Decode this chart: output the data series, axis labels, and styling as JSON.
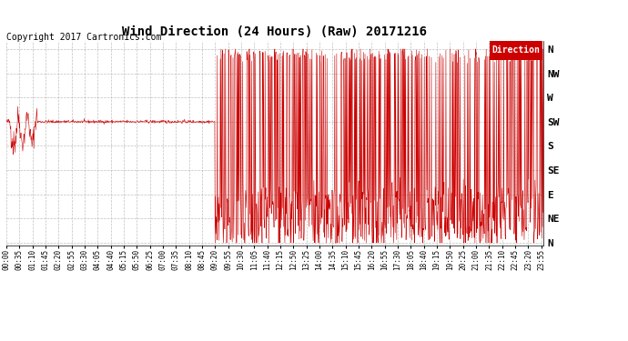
{
  "title": "Wind Direction (24 Hours) (Raw) 20171216",
  "copyright": "Copyright 2017 Cartronics.com",
  "legend_label": "Direction",
  "legend_bg": "#cc0000",
  "legend_text_color": "#ffffff",
  "line_color": "#cc0000",
  "bg_color": "#ffffff",
  "grid_color": "#b0b0b0",
  "y_labels": [
    "N",
    "NW",
    "W",
    "SW",
    "S",
    "SE",
    "E",
    "NE",
    "N"
  ],
  "y_values": [
    360,
    315,
    270,
    225,
    180,
    135,
    90,
    45,
    0
  ],
  "ylim": [
    -5,
    375
  ],
  "figsize": [
    6.9,
    3.75
  ],
  "dpi": 100,
  "title_fontsize": 10,
  "copyright_fontsize": 7,
  "ytick_fontsize": 8,
  "xtick_fontsize": 5.5
}
